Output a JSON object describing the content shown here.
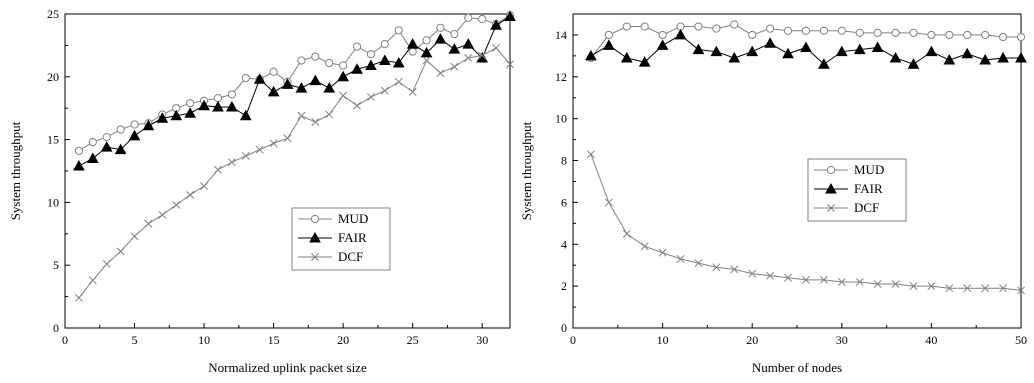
{
  "chart_data": [
    {
      "type": "line",
      "xlabel": "Normalized uplink packet size",
      "ylabel": "System throughput",
      "xlim": [
        0,
        32
      ],
      "ylim": [
        0,
        25
      ],
      "xticks": [
        0,
        5,
        10,
        15,
        20,
        25,
        30
      ],
      "yticks": [
        0,
        5,
        10,
        15,
        20,
        25
      ],
      "grid": false,
      "legend_position": "center-right",
      "x": [
        1,
        2,
        3,
        4,
        5,
        6,
        7,
        8,
        9,
        10,
        11,
        12,
        13,
        14,
        15,
        16,
        17,
        18,
        19,
        20,
        21,
        22,
        23,
        24,
        25,
        26,
        27,
        28,
        29,
        30,
        31,
        32
      ],
      "series": [
        {
          "name": "MUD",
          "marker": "circle",
          "color": "#808080",
          "values": [
            14.1,
            14.8,
            15.2,
            15.8,
            16.2,
            16.3,
            17.0,
            17.5,
            17.9,
            18.1,
            18.3,
            18.6,
            19.9,
            19.8,
            20.4,
            19.6,
            21.3,
            21.6,
            21.1,
            20.9,
            22.4,
            21.8,
            22.6,
            23.7,
            22.0,
            22.9,
            23.9,
            23.4,
            24.7,
            24.6,
            24.2,
            24.9
          ]
        },
        {
          "name": "FAIR",
          "marker": "triangle",
          "color": "#000000",
          "values": [
            12.9,
            13.5,
            14.4,
            14.2,
            15.3,
            16.1,
            16.7,
            16.9,
            17.1,
            17.7,
            17.6,
            17.6,
            16.9,
            19.8,
            18.8,
            19.4,
            19.1,
            19.7,
            19.1,
            20.0,
            20.6,
            20.9,
            21.3,
            21.1,
            22.6,
            21.9,
            23.0,
            22.2,
            22.6,
            21.5,
            24.1,
            24.8
          ]
        },
        {
          "name": "DCF",
          "marker": "x",
          "color": "#808080",
          "values": [
            2.4,
            3.8,
            5.1,
            6.1,
            7.3,
            8.3,
            9.0,
            9.8,
            10.6,
            11.3,
            12.6,
            13.2,
            13.7,
            14.2,
            14.7,
            15.1,
            16.9,
            16.4,
            17.0,
            18.5,
            17.7,
            18.4,
            18.9,
            19.6,
            18.8,
            21.3,
            20.3,
            20.8,
            21.5,
            21.7,
            22.3,
            21.0
          ]
        }
      ]
    },
    {
      "type": "line",
      "xlabel": "Number of nodes",
      "ylabel": "System throughput",
      "xlim": [
        0,
        50
      ],
      "ylim": [
        0,
        15
      ],
      "xticks": [
        0,
        10,
        20,
        30,
        40,
        50
      ],
      "yticks": [
        0,
        2,
        4,
        6,
        8,
        10,
        12,
        14
      ],
      "grid": false,
      "legend_position": "center-right",
      "x": [
        2,
        4,
        6,
        8,
        10,
        12,
        14,
        16,
        18,
        20,
        22,
        24,
        26,
        28,
        30,
        32,
        34,
        36,
        38,
        40,
        42,
        44,
        46,
        48,
        50
      ],
      "series": [
        {
          "name": "MUD",
          "marker": "circle",
          "color": "#808080",
          "values": [
            12.9,
            14.0,
            14.4,
            14.4,
            14.0,
            14.4,
            14.4,
            14.3,
            14.5,
            14.0,
            14.3,
            14.2,
            14.2,
            14.2,
            14.2,
            14.1,
            14.1,
            14.1,
            14.1,
            14.0,
            14.0,
            14.0,
            14.0,
            13.9,
            13.9
          ]
        },
        {
          "name": "FAIR",
          "marker": "triangle",
          "color": "#000000",
          "values": [
            13.0,
            13.5,
            12.9,
            12.7,
            13.5,
            14.0,
            13.3,
            13.2,
            12.9,
            13.2,
            13.6,
            13.1,
            13.4,
            12.6,
            13.2,
            13.3,
            13.4,
            12.9,
            12.6,
            13.2,
            12.8,
            13.1,
            12.8,
            12.9,
            12.9
          ]
        },
        {
          "name": "DCF",
          "marker": "x",
          "color": "#808080",
          "values": [
            8.3,
            6.0,
            4.5,
            3.9,
            3.6,
            3.3,
            3.1,
            2.9,
            2.8,
            2.6,
            2.5,
            2.4,
            2.3,
            2.3,
            2.2,
            2.2,
            2.1,
            2.1,
            2.0,
            2.0,
            1.9,
            1.9,
            1.9,
            1.9,
            1.8
          ]
        }
      ]
    }
  ]
}
